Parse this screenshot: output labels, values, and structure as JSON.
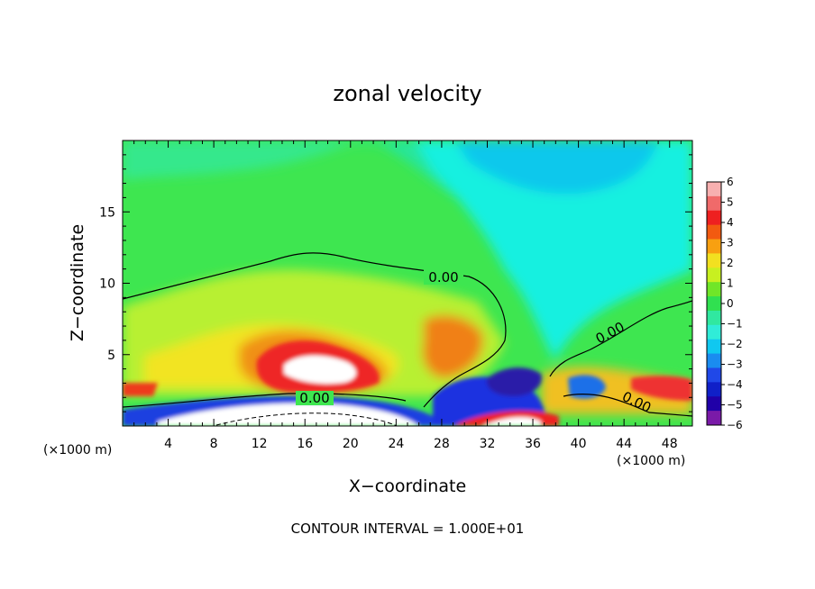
{
  "chart_data": {
    "type": "heatmap",
    "title": "zonal velocity",
    "xlabel": "X−coordinate",
    "ylabel": "Z−coordinate",
    "x_unit_left": "(×1000 m)",
    "x_unit_right": "(×1000 m)",
    "xlim": [
      0,
      50
    ],
    "ylim": [
      0,
      20
    ],
    "x_ticks": [
      4,
      8,
      12,
      16,
      20,
      24,
      28,
      32,
      36,
      40,
      44,
      48
    ],
    "y_ticks": [
      5,
      10,
      15
    ],
    "colorbar": {
      "ticks": [
        "6",
        "5",
        "4",
        "3",
        "2",
        "1",
        "0",
        "−1",
        "−2",
        "−3",
        "−4",
        "−5",
        "−6"
      ],
      "colors": [
        "#f7b0b0",
        "#f06a6a",
        "#ee2020",
        "#f25a10",
        "#f8a010",
        "#f2e020",
        "#c8f020",
        "#70e628",
        "#30e050",
        "#30e8a0",
        "#30ecd8",
        "#10c8f0",
        "#1a8cf0",
        "#2048e8",
        "#1020c8",
        "#2000a8",
        "#7a1aa8"
      ]
    },
    "contour_labels": [
      "0.00",
      "0.00",
      "0.00",
      "0.00"
    ],
    "footer": "CONTOUR INTERVAL = 1.000E+01"
  }
}
